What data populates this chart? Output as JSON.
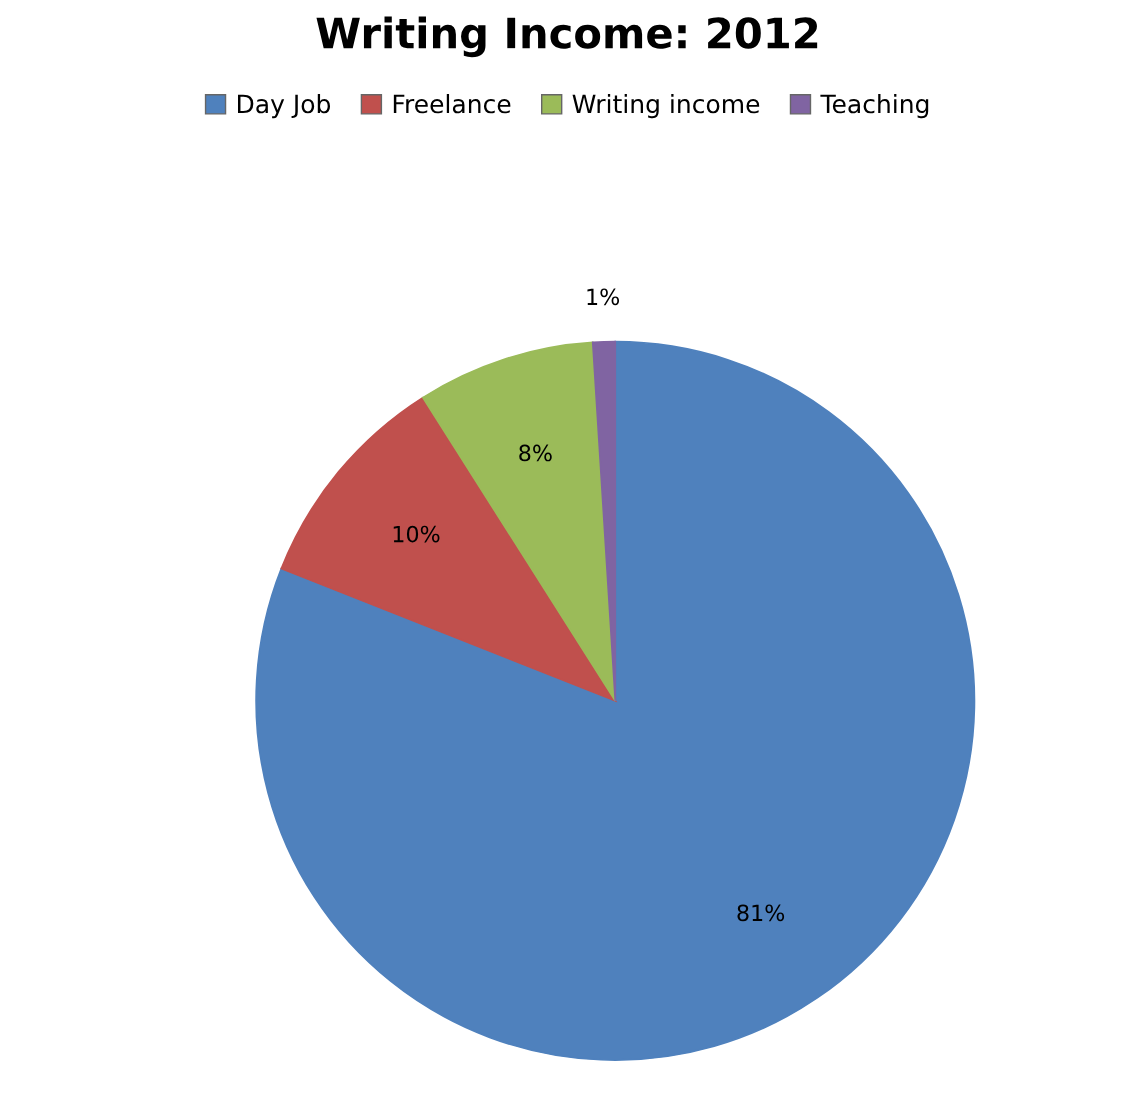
{
  "chart_data": {
    "type": "pie",
    "title": "Writing Income: 2012",
    "categories": [
      "Day Job",
      "Freelance",
      "Writing income",
      "Teaching"
    ],
    "values": [
      81,
      10,
      8,
      1
    ],
    "colors": [
      "#4f81bd",
      "#c0504d",
      "#9bbb59",
      "#8064a2"
    ],
    "value_labels": [
      "81%",
      "10%",
      "8%",
      "1%"
    ],
    "legend": "top"
  }
}
